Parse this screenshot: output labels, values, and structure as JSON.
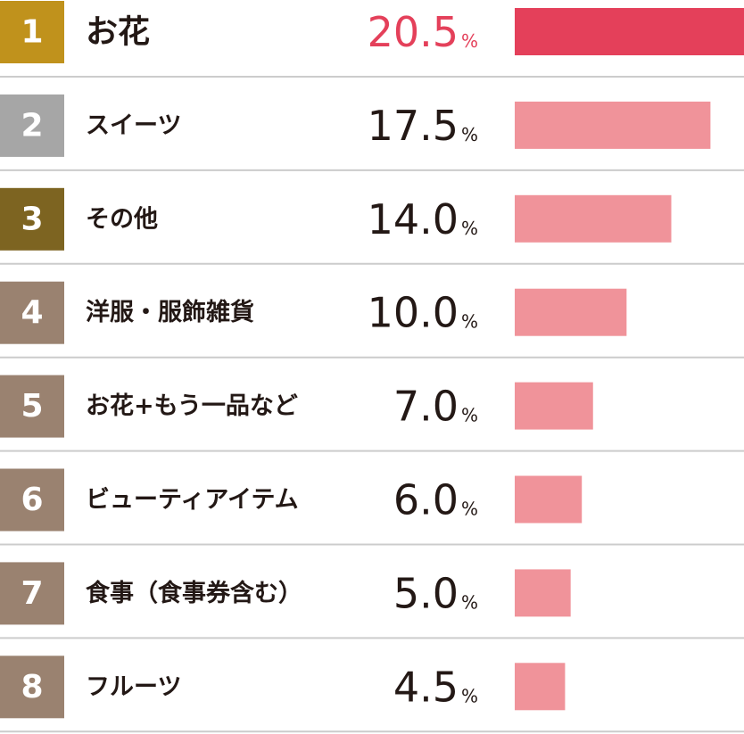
{
  "chart_data": {
    "type": "bar",
    "unit": "%",
    "ranks": [
      "1",
      "2",
      "3",
      "4",
      "5",
      "6",
      "7",
      "8"
    ],
    "rank_colors": [
      "#c0921c",
      "#a6a6a6",
      "#7d6421",
      "#9a8270",
      "#9a8270",
      "#9a8270",
      "#9a8270",
      "#9a8270"
    ],
    "categories": [
      "お花",
      "スイーツ",
      "その他",
      "洋服・服飾雑貨",
      "お花+もう一品など",
      "ビューティアイテム",
      "食事（食事券含む）",
      "フルーツ"
    ],
    "values": [
      20.5,
      17.5,
      14.0,
      10.0,
      7.0,
      6.0,
      5.0,
      4.5
    ],
    "value_labels": [
      "20.5",
      "17.5",
      "14.0",
      "10.0",
      "7.0",
      "6.0",
      "5.0",
      "4.5"
    ],
    "colors": [
      "#e4405a",
      "#f0939a",
      "#f0939a",
      "#f0939a",
      "#f0939a",
      "#f0939a",
      "#f0939a",
      "#f0939a"
    ]
  }
}
